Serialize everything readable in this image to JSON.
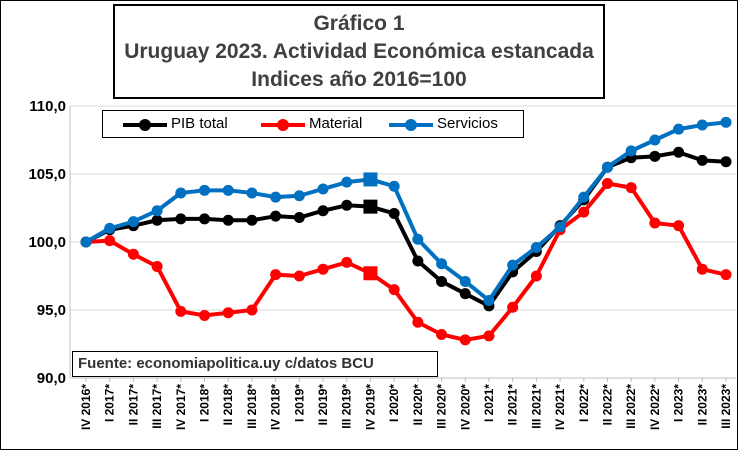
{
  "chart_data": {
    "type": "line",
    "title": [
      "Gráfico 1",
      "Uruguay 2023. Actividad Económica  estancada",
      "Indices año 2016=100"
    ],
    "source": "Fuente: economiapolitica.uy c/datos BCU",
    "xlabel": "",
    "ylabel": "",
    "ylim": [
      90,
      110
    ],
    "yticks": [
      "90,0",
      "95,0",
      "100,0",
      "105,0",
      "110,0"
    ],
    "ytick_values": [
      90,
      95,
      100,
      105,
      110
    ],
    "grid": "horizontal",
    "legend_position": "top",
    "categories": [
      "IV 2016*",
      "I 2017*",
      "II 2017*",
      "III 2017*",
      "IV 2017*",
      "I 2018*",
      "II 2018*",
      "III 2018*",
      "IV 2018*",
      "I 2019*",
      "II 2019*",
      "III 2019*",
      "IV 2019*",
      "I 2020*",
      "II 2020*",
      "III 2020*",
      "IV 2020*",
      "I 2021*",
      "II 2021*",
      "III 2021*",
      "IV 2021*",
      "I 2022*",
      "II 2022*",
      "III 2022*",
      "IV 2022*",
      "I 2023*",
      "II 2023*",
      "III 2023*"
    ],
    "series": [
      {
        "name": "PIB total",
        "color": "#000000",
        "values": [
          100.0,
          100.9,
          101.2,
          101.6,
          101.7,
          101.7,
          101.6,
          101.6,
          101.9,
          101.8,
          102.3,
          102.7,
          102.6,
          102.1,
          98.6,
          97.1,
          96.2,
          95.3,
          97.8,
          99.3,
          101.2,
          103.1,
          105.5,
          106.2,
          106.3,
          106.6,
          106.0,
          105.9
        ],
        "square_marker_index": 12
      },
      {
        "name": "Material",
        "color": "#ff0000",
        "values": [
          100.0,
          100.1,
          99.1,
          98.2,
          94.9,
          94.6,
          94.8,
          95.0,
          97.6,
          97.5,
          98.0,
          98.5,
          97.7,
          96.5,
          94.1,
          93.2,
          92.8,
          93.1,
          95.2,
          97.5,
          100.9,
          102.2,
          104.3,
          104.0,
          101.4,
          101.2,
          98.0,
          97.6
        ],
        "square_marker_index": 12
      },
      {
        "name": "Servicios",
        "color": "#0070c0",
        "values": [
          100.0,
          101.0,
          101.5,
          102.3,
          103.6,
          103.8,
          103.8,
          103.6,
          103.3,
          103.4,
          103.9,
          104.4,
          104.6,
          104.1,
          100.2,
          98.4,
          97.1,
          95.7,
          98.3,
          99.6,
          101.1,
          103.3,
          105.5,
          106.7,
          107.5,
          108.3,
          108.6,
          108.8
        ],
        "square_marker_index": 12
      }
    ]
  }
}
